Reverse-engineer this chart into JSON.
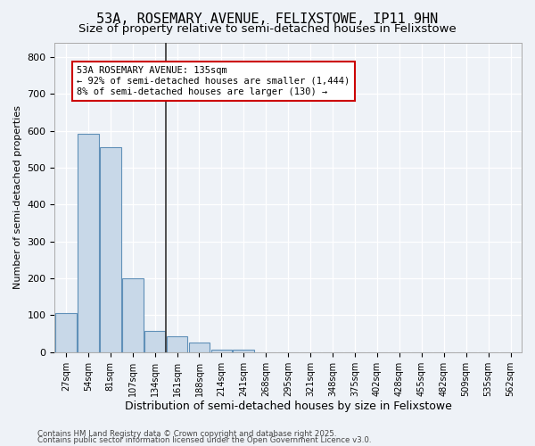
{
  "title": "53A, ROSEMARY AVENUE, FELIXSTOWE, IP11 9HN",
  "subtitle": "Size of property relative to semi-detached houses in Felixstowe",
  "xlabel": "Distribution of semi-detached houses by size in Felixstowe",
  "ylabel": "Number of semi-detached properties",
  "bins": [
    "27sqm",
    "54sqm",
    "81sqm",
    "107sqm",
    "134sqm",
    "161sqm",
    "188sqm",
    "214sqm",
    "241sqm",
    "268sqm",
    "295sqm",
    "321sqm",
    "348sqm",
    "375sqm",
    "402sqm",
    "428sqm",
    "455sqm",
    "482sqm",
    "509sqm",
    "535sqm",
    "562sqm"
  ],
  "values": [
    107,
    592,
    556,
    200,
    57,
    43,
    27,
    8,
    8,
    0,
    0,
    0,
    0,
    0,
    0,
    0,
    0,
    0,
    0,
    0,
    0
  ],
  "bar_color": "#c8d8e8",
  "bar_edge_color": "#6090b8",
  "vline_color": "#333333",
  "ylim": [
    0,
    840
  ],
  "yticks": [
    0,
    100,
    200,
    300,
    400,
    500,
    600,
    700,
    800
  ],
  "annotation_title": "53A ROSEMARY AVENUE: 135sqm",
  "annotation_line1": "← 92% of semi-detached houses are smaller (1,444)",
  "annotation_line2": "8% of semi-detached houses are larger (130) →",
  "annotation_box_edge": "#cc0000",
  "footer1": "Contains HM Land Registry data © Crown copyright and database right 2025.",
  "footer2": "Contains public sector information licensed under the Open Government Licence v3.0.",
  "bg_color": "#eef2f7",
  "plot_bg_color": "#eef2f7",
  "grid_color": "#ffffff",
  "title_fontsize": 11,
  "subtitle_fontsize": 9.5
}
